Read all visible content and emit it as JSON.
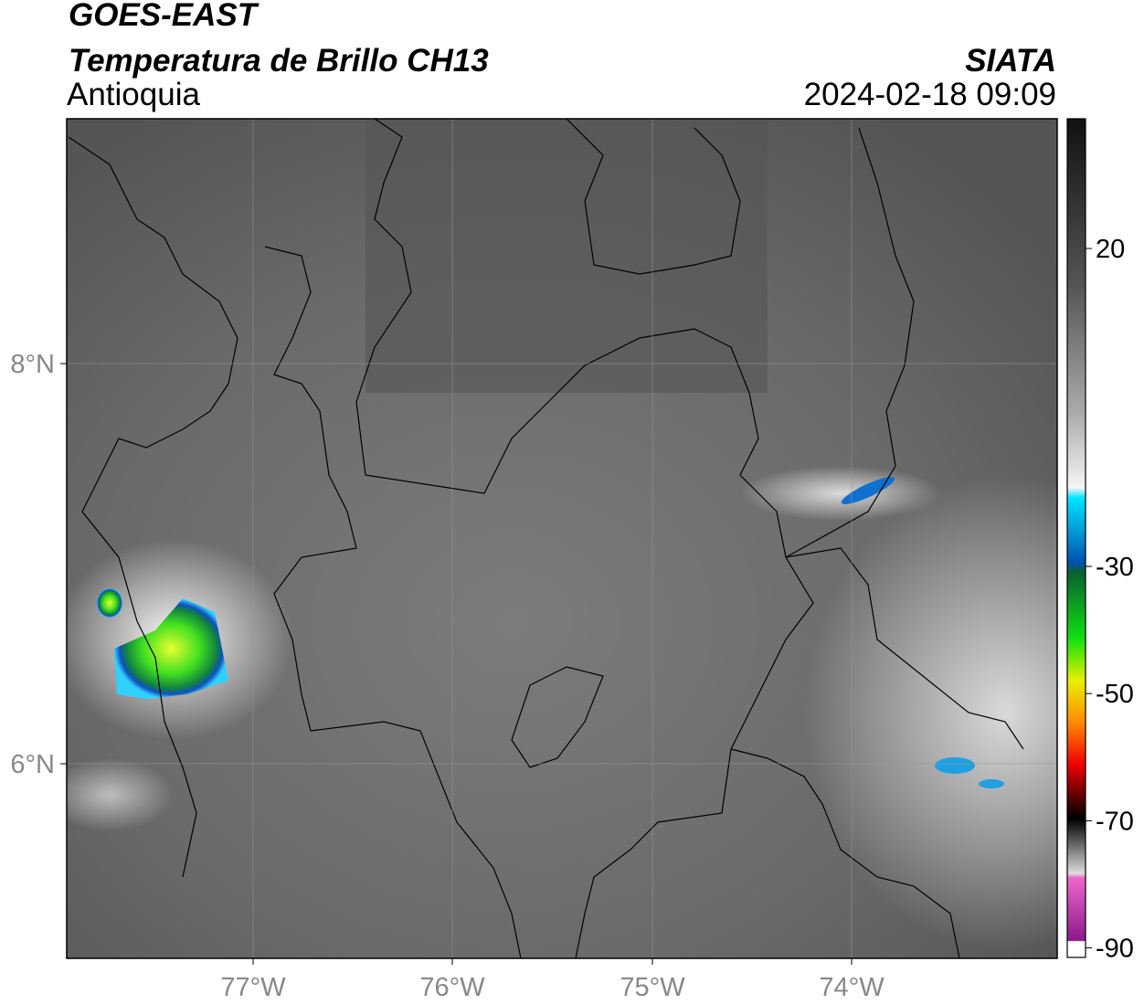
{
  "header": {
    "title": "GOES-EAST",
    "subtitle": "Temperatura de Brillo CH13",
    "region": "Antioquia",
    "source": "SIATA",
    "datetime": "2024-02-18 09:09"
  },
  "map": {
    "lat_ticks": [
      "8°N",
      "6°N"
    ],
    "lon_ticks": [
      "77°W",
      "76°W",
      "75°W",
      "74°W"
    ]
  },
  "colorbar": {
    "ticks": [
      20,
      -30,
      -50,
      -70,
      -90
    ]
  }
}
